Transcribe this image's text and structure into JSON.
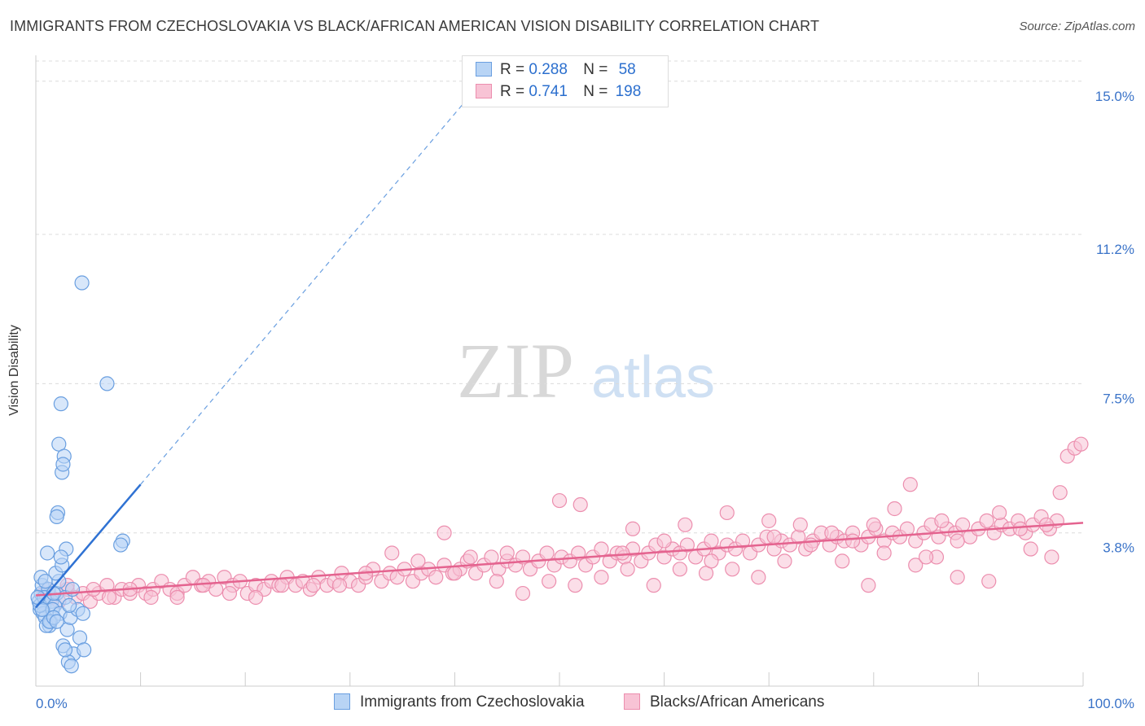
{
  "title": "IMMIGRANTS FROM CZECHOSLOVAKIA VS BLACK/AFRICAN AMERICAN VISION DISABILITY CORRELATION CHART",
  "source": "Source: ZipAtlas.com",
  "watermark": {
    "zip": "ZIP",
    "atlas": "atlas"
  },
  "colors": {
    "blue_fill": "#b8d4f5",
    "blue_stroke": "#6a9fe0",
    "blue_line": "#2f72d3",
    "pink_fill": "#f8c3d5",
    "pink_stroke": "#ec8eae",
    "pink_line": "#e4638f",
    "tick_text": "#3a73c8"
  },
  "stats": [
    {
      "r_label": "R =",
      "r_value": "0.288",
      "n_label": "N =",
      "n_value": "58"
    },
    {
      "r_label": "R =",
      "r_value": "0.741",
      "n_label": "N =",
      "n_value": "198"
    }
  ],
  "legend": [
    {
      "label": "Immigrants from Czechoslovakia"
    },
    {
      "label": "Blacks/African Americans"
    }
  ],
  "chart_data": {
    "type": "scatter",
    "ylabel": "Vision Disability",
    "xlim": [
      0,
      100
    ],
    "ylim": [
      0,
      15.5
    ],
    "x_ticks": [
      "0.0%",
      "100.0%"
    ],
    "y_ticks": [
      {
        "value": 3.8,
        "label": "3.8%"
      },
      {
        "value": 7.5,
        "label": "7.5%"
      },
      {
        "value": 11.2,
        "label": "11.2%"
      },
      {
        "value": 15.0,
        "label": "15.0%"
      }
    ],
    "grid": true,
    "series": [
      {
        "name": "Immigrants from Czechoslovakia",
        "color": "blue",
        "trend": {
          "x0": 0,
          "y0": 1.95,
          "x1": 10.0,
          "y1": 5.0,
          "dash_to_x": 41.0,
          "dash_to_y": 14.5
        },
        "points": [
          [
            0.3,
            2.1
          ],
          [
            0.5,
            2.3
          ],
          [
            0.4,
            1.9
          ],
          [
            0.8,
            2.0
          ],
          [
            0.6,
            2.5
          ],
          [
            1.0,
            2.2
          ],
          [
            0.7,
            1.8
          ],
          [
            1.2,
            2.4
          ],
          [
            0.9,
            1.7
          ],
          [
            1.5,
            2.1
          ],
          [
            0.5,
            2.7
          ],
          [
            1.1,
            3.3
          ],
          [
            1.3,
            1.5
          ],
          [
            1.8,
            2.0
          ],
          [
            2.0,
            2.3
          ],
          [
            0.4,
            2.0
          ],
          [
            1.6,
            1.9
          ],
          [
            2.2,
            2.6
          ],
          [
            0.8,
            2.2
          ],
          [
            1.4,
            1.6
          ],
          [
            1.9,
            2.8
          ],
          [
            2.5,
            3.0
          ],
          [
            2.3,
            1.8
          ],
          [
            2.8,
            2.2
          ],
          [
            3.0,
            1.4
          ],
          [
            3.3,
            1.7
          ],
          [
            2.6,
            1.0
          ],
          [
            3.6,
            0.8
          ],
          [
            3.1,
            0.6
          ],
          [
            3.5,
            2.4
          ],
          [
            4.0,
            1.9
          ],
          [
            4.5,
            1.8
          ],
          [
            4.2,
            1.2
          ],
          [
            4.6,
            0.9
          ],
          [
            2.4,
            7.0
          ],
          [
            4.4,
            10.0
          ],
          [
            6.8,
            7.5
          ],
          [
            2.1,
            4.3
          ],
          [
            2.2,
            6.0
          ],
          [
            2.5,
            5.3
          ],
          [
            2.7,
            5.7
          ],
          [
            2.6,
            5.5
          ],
          [
            2.0,
            4.2
          ],
          [
            2.9,
            3.4
          ],
          [
            2.4,
            3.2
          ],
          [
            3.2,
            2.0
          ],
          [
            8.3,
            3.6
          ],
          [
            8.1,
            3.5
          ],
          [
            1.7,
            2.3
          ],
          [
            1.0,
            1.5
          ],
          [
            1.3,
            1.6
          ],
          [
            0.6,
            1.9
          ],
          [
            0.2,
            2.2
          ],
          [
            0.9,
            2.6
          ],
          [
            1.7,
            1.7
          ],
          [
            2.0,
            1.6
          ],
          [
            2.8,
            0.9
          ],
          [
            3.4,
            0.5
          ]
        ]
      },
      {
        "name": "Blacks/African Americans",
        "color": "pink",
        "trend": {
          "x0": 0,
          "y0": 2.25,
          "x1": 100,
          "y1": 4.05
        },
        "points": [
          [
            0.8,
            2.3
          ],
          [
            1.5,
            2.2
          ],
          [
            2.2,
            2.1
          ],
          [
            3.0,
            2.4
          ],
          [
            3.8,
            2.2
          ],
          [
            4.5,
            2.3
          ],
          [
            5.2,
            2.1
          ],
          [
            6.0,
            2.3
          ],
          [
            6.8,
            2.5
          ],
          [
            7.5,
            2.2
          ],
          [
            8.2,
            2.4
          ],
          [
            9.0,
            2.3
          ],
          [
            9.8,
            2.5
          ],
          [
            10.5,
            2.3
          ],
          [
            11.2,
            2.4
          ],
          [
            12.0,
            2.6
          ],
          [
            12.8,
            2.4
          ],
          [
            13.5,
            2.3
          ],
          [
            14.2,
            2.5
          ],
          [
            15.0,
            2.7
          ],
          [
            15.8,
            2.5
          ],
          [
            16.5,
            2.6
          ],
          [
            17.2,
            2.4
          ],
          [
            18.0,
            2.7
          ],
          [
            18.8,
            2.5
          ],
          [
            19.5,
            2.6
          ],
          [
            20.2,
            2.3
          ],
          [
            21.0,
            2.5
          ],
          [
            21.8,
            2.4
          ],
          [
            22.5,
            2.6
          ],
          [
            23.2,
            2.5
          ],
          [
            24.0,
            2.7
          ],
          [
            24.8,
            2.5
          ],
          [
            25.5,
            2.6
          ],
          [
            26.2,
            2.4
          ],
          [
            27.0,
            2.7
          ],
          [
            27.8,
            2.5
          ],
          [
            28.5,
            2.6
          ],
          [
            29.2,
            2.8
          ],
          [
            30.0,
            2.6
          ],
          [
            30.8,
            2.5
          ],
          [
            31.5,
            2.7
          ],
          [
            32.2,
            2.9
          ],
          [
            33.0,
            2.6
          ],
          [
            33.8,
            2.8
          ],
          [
            34.5,
            2.7
          ],
          [
            35.2,
            2.9
          ],
          [
            36.0,
            2.6
          ],
          [
            36.8,
            2.8
          ],
          [
            37.5,
            2.9
          ],
          [
            38.2,
            2.7
          ],
          [
            39.0,
            3.0
          ],
          [
            39.8,
            2.8
          ],
          [
            40.5,
            2.9
          ],
          [
            41.2,
            3.1
          ],
          [
            42.0,
            2.8
          ],
          [
            42.8,
            3.0
          ],
          [
            43.5,
            3.2
          ],
          [
            44.2,
            2.9
          ],
          [
            45.0,
            3.1
          ],
          [
            45.8,
            3.0
          ],
          [
            46.5,
            3.2
          ],
          [
            47.2,
            2.9
          ],
          [
            48.0,
            3.1
          ],
          [
            48.8,
            3.3
          ],
          [
            49.5,
            3.0
          ],
          [
            50.2,
            3.2
          ],
          [
            51.0,
            3.1
          ],
          [
            51.8,
            3.3
          ],
          [
            52.5,
            3.0
          ],
          [
            53.2,
            3.2
          ],
          [
            54.0,
            3.4
          ],
          [
            54.8,
            3.1
          ],
          [
            55.5,
            3.3
          ],
          [
            56.2,
            3.2
          ],
          [
            57.0,
            3.4
          ],
          [
            57.8,
            3.1
          ],
          [
            58.5,
            3.3
          ],
          [
            59.2,
            3.5
          ],
          [
            60.0,
            3.2
          ],
          [
            60.8,
            3.4
          ],
          [
            61.5,
            3.3
          ],
          [
            62.2,
            3.5
          ],
          [
            63.0,
            3.2
          ],
          [
            63.8,
            3.4
          ],
          [
            64.5,
            3.6
          ],
          [
            65.2,
            3.3
          ],
          [
            66.0,
            3.5
          ],
          [
            66.8,
            3.4
          ],
          [
            67.5,
            3.6
          ],
          [
            68.2,
            3.3
          ],
          [
            69.0,
            3.5
          ],
          [
            69.8,
            3.7
          ],
          [
            70.5,
            3.4
          ],
          [
            71.2,
            3.6
          ],
          [
            72.0,
            3.5
          ],
          [
            72.8,
            3.7
          ],
          [
            73.5,
            3.4
          ],
          [
            74.2,
            3.6
          ],
          [
            75.0,
            3.8
          ],
          [
            75.8,
            3.5
          ],
          [
            76.5,
            3.7
          ],
          [
            77.2,
            3.6
          ],
          [
            78.0,
            3.8
          ],
          [
            78.8,
            3.5
          ],
          [
            79.5,
            3.7
          ],
          [
            80.2,
            3.9
          ],
          [
            81.0,
            3.6
          ],
          [
            81.8,
            3.8
          ],
          [
            82.5,
            3.7
          ],
          [
            83.2,
            3.9
          ],
          [
            84.0,
            3.6
          ],
          [
            84.8,
            3.8
          ],
          [
            85.5,
            4.0
          ],
          [
            86.2,
            3.7
          ],
          [
            87.0,
            3.9
          ],
          [
            87.8,
            3.8
          ],
          [
            88.5,
            4.0
          ],
          [
            89.2,
            3.7
          ],
          [
            90.0,
            3.9
          ],
          [
            90.8,
            4.1
          ],
          [
            91.5,
            3.8
          ],
          [
            92.2,
            4.0
          ],
          [
            93.0,
            3.9
          ],
          [
            93.8,
            4.1
          ],
          [
            94.5,
            3.8
          ],
          [
            95.2,
            4.0
          ],
          [
            96.0,
            4.2
          ],
          [
            96.8,
            3.9
          ],
          [
            97.5,
            4.1
          ],
          [
            98.5,
            5.7
          ],
          [
            99.2,
            5.9
          ],
          [
            97.8,
            4.8
          ],
          [
            99.8,
            6.0
          ],
          [
            97.0,
            3.2
          ],
          [
            95.0,
            3.4
          ],
          [
            91.0,
            2.6
          ],
          [
            88.0,
            2.7
          ],
          [
            86.0,
            3.2
          ],
          [
            84.0,
            3.0
          ],
          [
            81.0,
            3.3
          ],
          [
            79.5,
            2.5
          ],
          [
            77.0,
            3.1
          ],
          [
            74.0,
            3.5
          ],
          [
            71.5,
            3.1
          ],
          [
            69.0,
            2.7
          ],
          [
            66.5,
            2.9
          ],
          [
            64.0,
            2.8
          ],
          [
            61.5,
            2.9
          ],
          [
            59.0,
            2.5
          ],
          [
            56.5,
            2.9
          ],
          [
            54.0,
            2.7
          ],
          [
            51.5,
            2.5
          ],
          [
            49.0,
            2.6
          ],
          [
            46.5,
            2.3
          ],
          [
            44.0,
            2.6
          ],
          [
            41.5,
            3.2
          ],
          [
            39.0,
            3.8
          ],
          [
            36.5,
            3.1
          ],
          [
            34.0,
            3.3
          ],
          [
            31.5,
            2.8
          ],
          [
            29.0,
            2.5
          ],
          [
            26.5,
            2.5
          ],
          [
            23.5,
            2.5
          ],
          [
            21.0,
            2.2
          ],
          [
            18.5,
            2.3
          ],
          [
            16.0,
            2.5
          ],
          [
            13.5,
            2.2
          ],
          [
            11.0,
            2.2
          ],
          [
            9.0,
            2.4
          ],
          [
            7.0,
            2.2
          ],
          [
            5.5,
            2.4
          ],
          [
            3.0,
            2.5
          ],
          [
            1.2,
            2.4
          ],
          [
            50.0,
            4.6
          ],
          [
            62.0,
            4.0
          ],
          [
            70.0,
            4.1
          ],
          [
            82.0,
            4.4
          ],
          [
            86.5,
            4.1
          ],
          [
            88.0,
            3.6
          ],
          [
            92.0,
            4.3
          ],
          [
            83.5,
            5.0
          ],
          [
            66.0,
            4.3
          ],
          [
            76.0,
            3.8
          ],
          [
            57.0,
            3.9
          ],
          [
            45.0,
            3.3
          ],
          [
            40.0,
            2.8
          ],
          [
            52.0,
            4.5
          ],
          [
            60.0,
            3.6
          ],
          [
            73.0,
            4.0
          ],
          [
            80.0,
            4.0
          ],
          [
            94.0,
            3.9
          ],
          [
            96.5,
            4.0
          ],
          [
            85.0,
            3.2
          ],
          [
            78.0,
            3.6
          ],
          [
            70.5,
            3.7
          ],
          [
            64.5,
            3.1
          ],
          [
            56.0,
            3.3
          ]
        ]
      }
    ]
  }
}
